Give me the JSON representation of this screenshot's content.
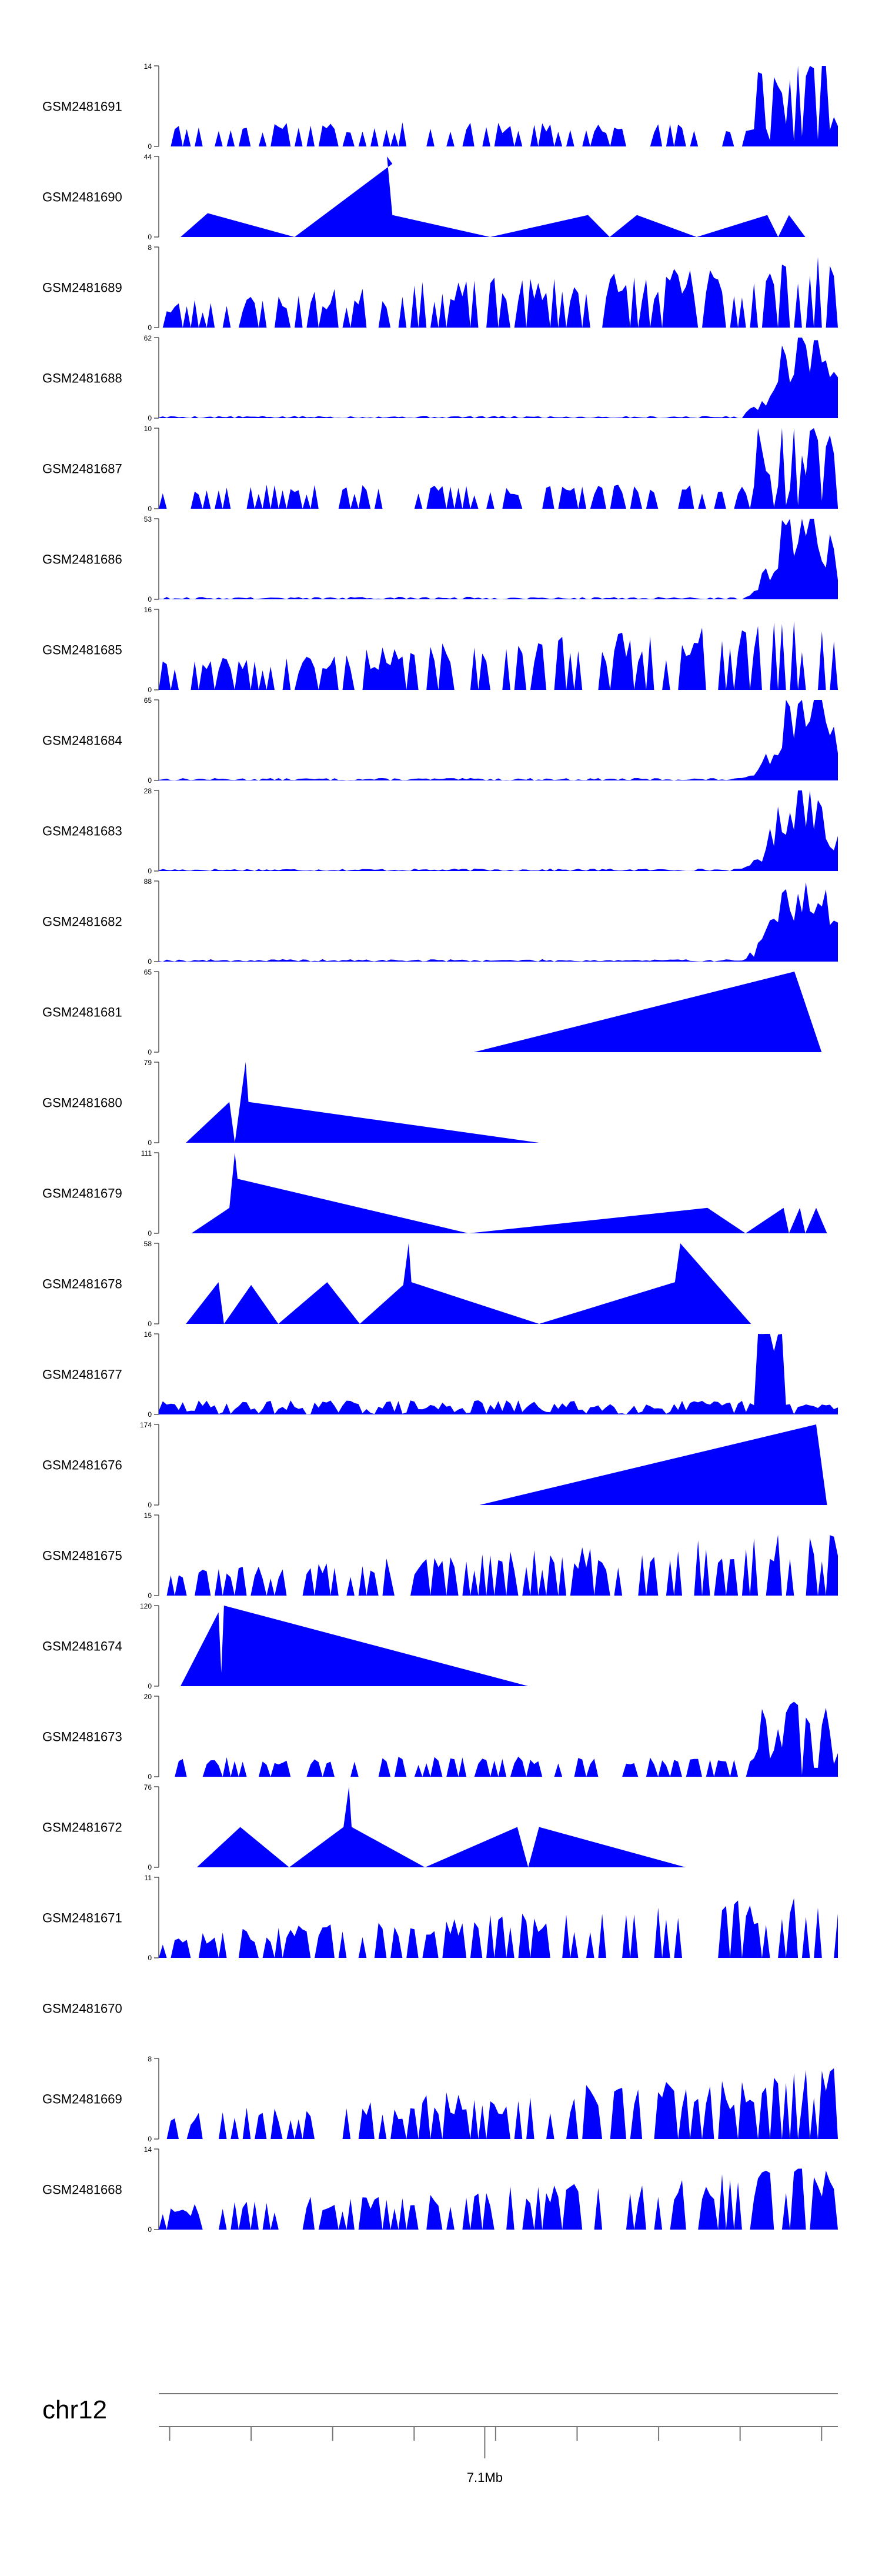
{
  "colors": {
    "signal": "#0000ff",
    "axis": "#555555",
    "text": "#000000",
    "background": "#ffffff"
  },
  "chart_data": {
    "type": "area",
    "title": "",
    "xlabel": "chr12",
    "region": {
      "chromosome": "chr12",
      "start_mb": 6.5,
      "end_mb": 7.75
    },
    "coordinate_ticks": [
      6.52,
      6.67,
      6.82,
      6.97,
      7.12,
      7.27,
      7.42,
      7.57,
      7.72
    ],
    "coordinate_labels": [
      {
        "mb": 7.1,
        "label": "7.1Mb"
      }
    ],
    "tracks": [
      {
        "name": "GSM2481691",
        "ymin": 0,
        "ymax": 14,
        "profile": "dense",
        "pattern": "tail",
        "seed": 11
      },
      {
        "name": "GSM2481690",
        "ymin": 0,
        "ymax": 44,
        "profile": "sparse",
        "points": [
          [
            6.54,
            0
          ],
          [
            6.59,
            13
          ],
          [
            6.75,
            0
          ],
          [
            6.93,
            40
          ],
          [
            6.92,
            44
          ],
          [
            6.93,
            12
          ],
          [
            7.11,
            0
          ],
          [
            7.29,
            12
          ],
          [
            7.33,
            0
          ],
          [
            7.38,
            12
          ],
          [
            7.49,
            0
          ],
          [
            7.62,
            12
          ],
          [
            7.64,
            0
          ],
          [
            7.66,
            12
          ],
          [
            7.69,
            0
          ]
        ]
      },
      {
        "name": "GSM2481689",
        "ymin": 0,
        "ymax": 8,
        "profile": "dense",
        "pattern": "spiky",
        "seed": 23
      },
      {
        "name": "GSM2481688",
        "ymin": 0,
        "ymax": 62,
        "profile": "dense",
        "pattern": "flat-peak",
        "seed": 5
      },
      {
        "name": "GSM2481687",
        "ymin": 0,
        "ymax": 10,
        "profile": "dense",
        "pattern": "tail",
        "seed": 37
      },
      {
        "name": "GSM2481686",
        "ymin": 0,
        "ymax": 53,
        "profile": "dense",
        "pattern": "flat-peak",
        "seed": 9
      },
      {
        "name": "GSM2481685",
        "ymin": 0,
        "ymax": 16,
        "profile": "dense",
        "pattern": "spiky",
        "seed": 41
      },
      {
        "name": "GSM2481684",
        "ymin": 0,
        "ymax": 65,
        "profile": "dense",
        "pattern": "flat-peak",
        "seed": 13
      },
      {
        "name": "GSM2481683",
        "ymin": 0,
        "ymax": 28,
        "profile": "dense",
        "pattern": "flat-peak",
        "seed": 17
      },
      {
        "name": "GSM2481682",
        "ymin": 0,
        "ymax": 88,
        "profile": "dense",
        "pattern": "flat-peak",
        "seed": 19
      },
      {
        "name": "GSM2481681",
        "ymin": 0,
        "ymax": 65,
        "profile": "sparse",
        "points": [
          [
            7.08,
            0
          ],
          [
            7.67,
            65
          ],
          [
            7.72,
            0
          ]
        ]
      },
      {
        "name": "GSM2481680",
        "ymin": 0,
        "ymax": 79,
        "profile": "sparse",
        "points": [
          [
            6.55,
            0
          ],
          [
            6.63,
            40
          ],
          [
            6.64,
            0
          ],
          [
            6.66,
            79
          ],
          [
            6.665,
            40
          ],
          [
            7.2,
            0
          ]
        ]
      },
      {
        "name": "GSM2481679",
        "ymin": 0,
        "ymax": 111,
        "profile": "sparse",
        "points": [
          [
            6.56,
            0
          ],
          [
            6.63,
            35
          ],
          [
            6.64,
            111
          ],
          [
            6.645,
            75
          ],
          [
            7.07,
            0
          ],
          [
            7.51,
            35
          ],
          [
            7.58,
            0
          ],
          [
            7.65,
            35
          ],
          [
            7.66,
            0
          ],
          [
            7.68,
            35
          ],
          [
            7.69,
            0
          ],
          [
            7.71,
            35
          ],
          [
            7.73,
            0
          ]
        ]
      },
      {
        "name": "GSM2481678",
        "ymin": 0,
        "ymax": 58,
        "profile": "sparse",
        "points": [
          [
            6.55,
            0
          ],
          [
            6.61,
            30
          ],
          [
            6.62,
            0
          ],
          [
            6.67,
            28
          ],
          [
            6.72,
            0
          ],
          [
            6.81,
            30
          ],
          [
            6.87,
            0
          ],
          [
            6.95,
            28
          ],
          [
            6.96,
            58
          ],
          [
            6.965,
            30
          ],
          [
            7.2,
            0
          ],
          [
            7.45,
            30
          ],
          [
            7.46,
            58
          ],
          [
            7.59,
            0
          ]
        ]
      },
      {
        "name": "GSM2481677",
        "ymin": 0,
        "ymax": 16,
        "profile": "dense",
        "pattern": "spike-late",
        "seed": 29
      },
      {
        "name": "GSM2481676",
        "ymin": 0,
        "ymax": 174,
        "profile": "sparse",
        "points": [
          [
            7.09,
            0
          ],
          [
            7.71,
            174
          ],
          [
            7.73,
            0
          ]
        ]
      },
      {
        "name": "GSM2481675",
        "ymin": 0,
        "ymax": 15,
        "profile": "dense",
        "pattern": "tri",
        "seed": 31
      },
      {
        "name": "GSM2481674",
        "ymin": 0,
        "ymax": 120,
        "profile": "sparse",
        "points": [
          [
            6.54,
            0
          ],
          [
            6.61,
            110
          ],
          [
            6.615,
            20
          ],
          [
            6.62,
            120
          ],
          [
            7.18,
            0
          ]
        ]
      },
      {
        "name": "GSM2481673",
        "ymin": 0,
        "ymax": 20,
        "profile": "dense",
        "pattern": "tri-tail",
        "seed": 43
      },
      {
        "name": "GSM2481672",
        "ymin": 0,
        "ymax": 76,
        "profile": "sparse",
        "points": [
          [
            6.57,
            0
          ],
          [
            6.65,
            38
          ],
          [
            6.74,
            0
          ],
          [
            6.84,
            38
          ],
          [
            6.85,
            76
          ],
          [
            6.855,
            38
          ],
          [
            6.99,
            0
          ],
          [
            7.16,
            38
          ],
          [
            7.18,
            0
          ],
          [
            7.2,
            38
          ],
          [
            7.47,
            0
          ]
        ]
      },
      {
        "name": "GSM2481671",
        "ymin": 0,
        "ymax": 11,
        "profile": "dense",
        "pattern": "tri",
        "seed": 47
      },
      {
        "name": "GSM2481670",
        "ymin": null,
        "ymax": null,
        "profile": "empty"
      },
      {
        "name": "GSM2481669",
        "ymin": 0,
        "ymax": 8,
        "profile": "dense",
        "pattern": "spiky",
        "seed": 53
      },
      {
        "name": "GSM2481668",
        "ymin": 0,
        "ymax": 14,
        "profile": "dense",
        "pattern": "tri",
        "seed": 59
      }
    ]
  }
}
